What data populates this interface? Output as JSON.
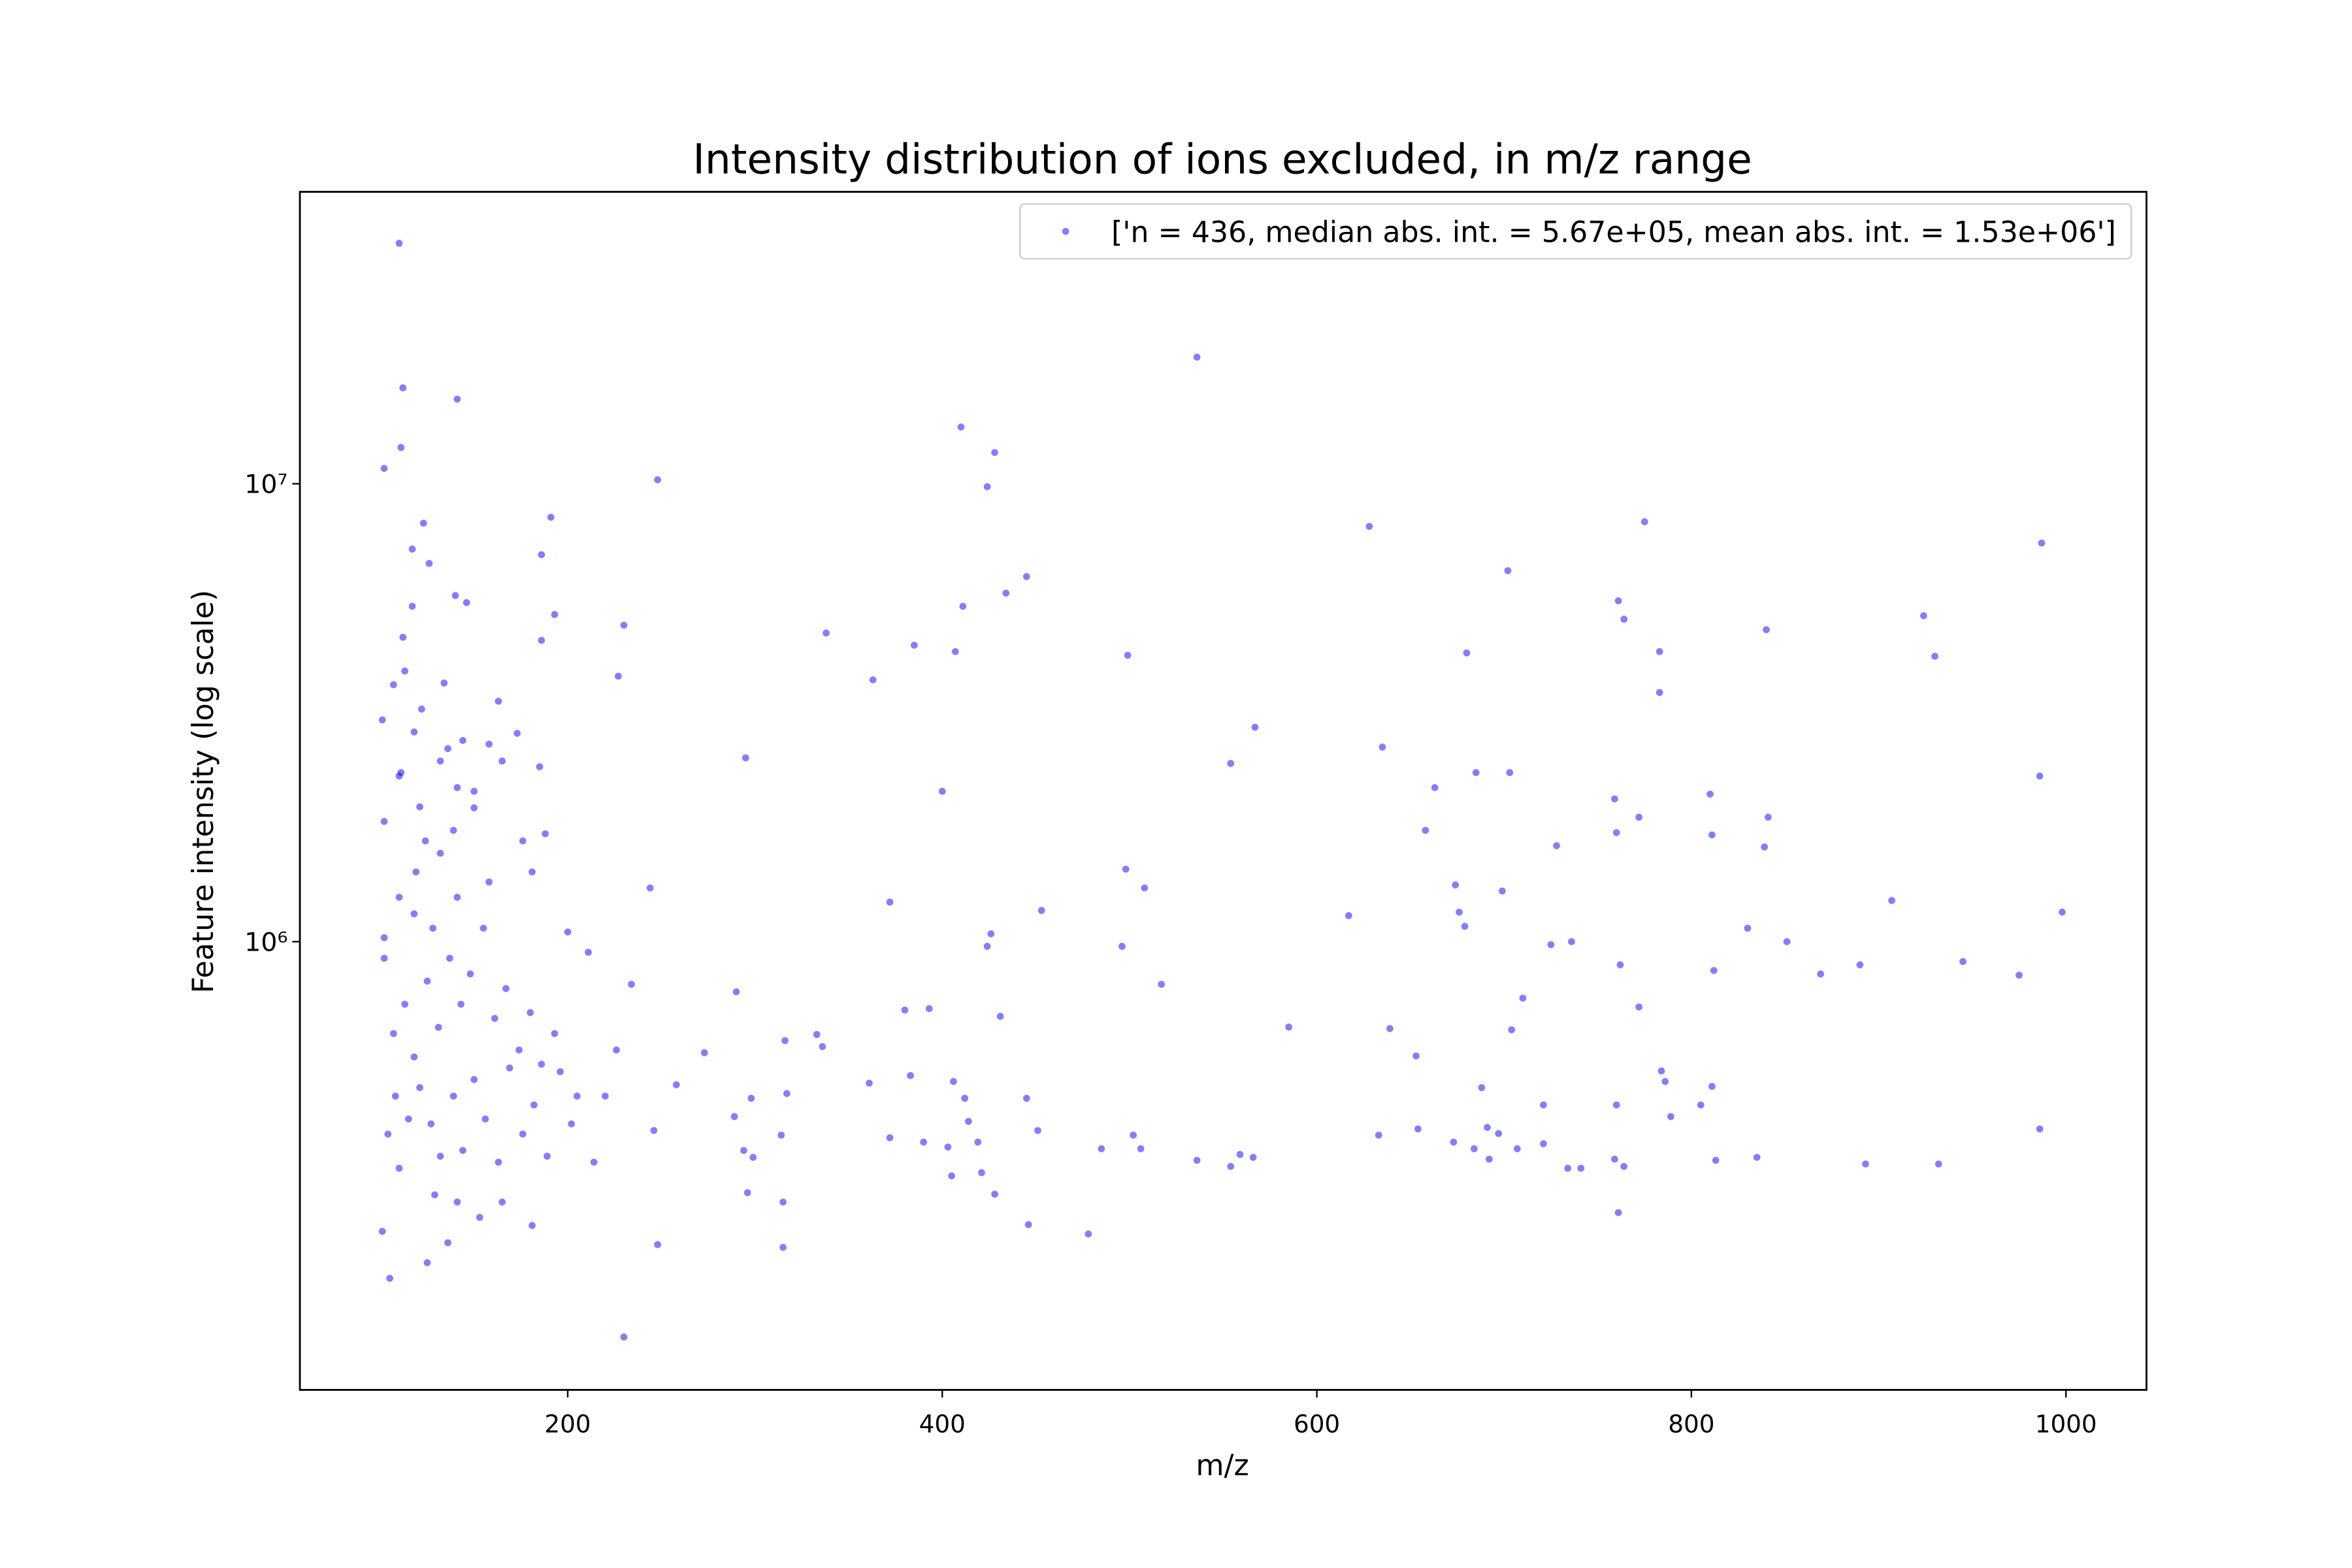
{
  "chart_data": {
    "type": "scatter",
    "title": "Intensity distribution of ions excluded, in m/z range",
    "xlabel": "m/z",
    "ylabel": "Feature intensity (log scale)",
    "xlim": [
      57,
      1043
    ],
    "ylim": [
      105000,
      43400000
    ],
    "xticks": [
      200,
      400,
      600,
      800,
      1000
    ],
    "yticks": [
      {
        "value": 1000000,
        "label": "10⁶"
      },
      {
        "value": 10000000,
        "label": "10⁷"
      }
    ],
    "log_y": true,
    "legend": "upper right",
    "alpha": 0.5,
    "x": [
      110,
      536,
      112,
      141,
      111,
      410,
      428,
      102,
      248,
      424,
      191,
      628,
      775,
      123,
      987,
      117,
      186,
      126,
      702,
      445,
      434,
      140,
      146,
      761,
      117,
      411,
      193,
      924,
      764,
      230,
      840,
      338,
      112,
      186,
      385,
      407,
      499,
      680,
      783,
      930,
      113,
      227,
      107,
      134,
      363,
      783,
      163,
      122,
      101,
      567,
      173,
      118,
      144,
      158,
      635,
      136,
      295,
      554,
      185,
      111,
      685,
      703,
      986,
      141,
      663,
      400,
      810,
      759,
      772,
      841,
      150,
      102,
      139,
      188,
      658,
      760,
      811,
      124,
      176,
      728,
      839,
      132,
      498,
      119,
      181,
      674,
      244,
      699,
      508,
      372,
      907,
      110,
      676,
      617,
      453,
      998,
      679,
      830,
      200,
      426,
      102,
      851,
      736,
      496,
      424,
      725,
      211,
      102,
      945,
      762,
      890,
      869,
      975,
      812,
      234,
      517,
      290,
      710,
      380,
      393,
      772,
      431,
      585,
      639,
      704,
      333,
      316,
      336,
      273,
      653,
      784,
      786,
      811,
      258,
      361,
      383,
      406,
      688,
      760,
      805,
      721,
      412,
      445,
      317,
      298,
      289,
      789,
      414,
      246,
      451,
      633,
      502,
      654,
      986,
      691,
      372,
      314,
      390,
      403,
      419,
      673,
      697,
      741,
      485,
      506,
      294,
      684,
      707,
      721,
      734,
      559,
      566,
      692,
      759,
      536,
      554,
      764,
      813,
      835,
      893,
      932,
      299,
      405,
      421,
      296,
      315,
      428,
      761,
      446,
      478,
      315,
      248,
      230,
      105,
      101,
      125,
      104,
      110,
      115,
      121,
      127,
      132,
      139,
      144,
      150,
      156,
      163,
      169,
      176,
      182,
      189,
      196,
      202,
      214,
      220,
      226,
      107,
      113,
      118,
      125,
      131,
      137,
      143,
      148,
      155,
      161,
      167,
      174,
      180,
      186,
      193,
      205,
      108,
      129,
      141,
      153,
      165,
      181,
      136,
      118,
      141,
      158,
      128,
      121,
      150,
      132,
      110,
      165
    ],
    "series": [
      {
        "name": "['n = 436, median abs. int. = 5.67e+05, mean abs. int. = 1.53e+06']",
        "color": "#0000ff",
        "values": [
          33500000,
          18900000,
          16200000,
          15300000,
          12000000,
          13300000,
          11700000,
          10800000,
          10200000,
          9850000,
          8450000,
          8070000,
          8260000,
          8200000,
          7420000,
          7200000,
          7000000,
          6700000,
          6460000,
          6270000,
          5770000,
          5700000,
          5500000,
          5550000,
          5400000,
          5400000,
          5180000,
          5150000,
          5060000,
          4910000,
          4800000,
          4720000,
          4620000,
          4550000,
          4440000,
          4300000,
          4220000,
          4270000,
          4300000,
          4200000,
          3900000,
          3800000,
          3640000,
          3670000,
          3730000,
          3500000,
          3350000,
          3220000,
          3050000,
          2940000,
          2850000,
          2870000,
          2750000,
          2700000,
          2660000,
          2640000,
          2520000,
          2450000,
          2410000,
          2340000,
          2340000,
          2340000,
          2300000,
          2170000,
          2170000,
          2130000,
          2100000,
          2050000,
          1870000,
          1870000,
          1960000,
          1830000,
          1750000,
          1720000,
          1750000,
          1730000,
          1710000,
          1660000,
          1660000,
          1620000,
          1610000,
          1560000,
          1440000,
          1420000,
          1420000,
          1330000,
          1310000,
          1290000,
          1310000,
          1220000,
          1230000,
          1250000,
          1160000,
          1140000,
          1170000,
          1160000,
          1080000,
          1070000,
          1050000,
          1040000,
          1020000,
          1000000,
          1000000,
          977000,
          977000,
          985000,
          948000,
          920000,
          905000,
          890000,
          890000,
          850000,
          845000,
          865000,
          807000,
          807000,
          777000,
          753000,
          709000,
          714000,
          720000,
          687000,
          651000,
          646000,
          642000,
          627000,
          608000,
          590000,
          572000,
          563000,
          522000,
          495000,
          483000,
          487000,
          491000,
          510000,
          495000,
          480000,
          440000,
          440000,
          440000,
          455000,
          455000,
          466000,
          455000,
          415000,
          415000,
          405000,
          387000,
          387000,
          378000,
          378000,
          390000,
          390000,
          393000,
          373000,
          378000,
          365000,
          356000,
          365000,
          365000,
          381000,
          320000,
          353000,
          353000,
          350000,
          353000,
          353000,
          362000,
          320000,
          343000,
          338000,
          335000,
          335000,
          333000,
          323000,
          323000,
          333000,
          338000,
          327000,
          327000,
          338000,
          308000,
          313000,
          283000,
          270000,
          281000,
          256000,
          241000,
          230000,
          215000,
          218000,
          137000,
          184000,
          233000,
          199000,
          380000,
          320000,
          410000,
          480000,
          400000,
          340000,
          460000,
          350000,
          500000,
          410000,
          330000,
          530000,
          380000,
          440000,
          340000,
          520000,
          400000,
          330000,
          460000,
          580000,
          630000,
          730000,
          560000,
          820000,
          650000,
          920000,
          730000,
          850000,
          1070000,
          680000,
          790000,
          580000,
          700000,
          540000,
          630000,
          460000,
          460000,
          280000,
          270000,
          250000,
          270000,
          240000,
          220000,
          1150000,
          1250000,
          1350000,
          1070000,
          1970000,
          2130000,
          2480000,
          2300000,
          2480000
        ]
      }
    ]
  }
}
